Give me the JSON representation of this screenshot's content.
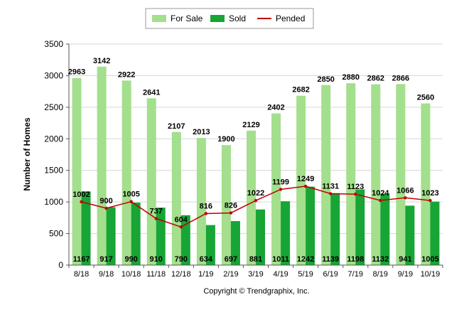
{
  "chart_data": {
    "type": "bar",
    "categories": [
      "8/18",
      "9/18",
      "10/18",
      "11/18",
      "12/18",
      "1/19",
      "2/19",
      "3/19",
      "4/19",
      "5/19",
      "6/19",
      "7/19",
      "8/19",
      "9/19",
      "10/19"
    ],
    "series": [
      {
        "name": "For Sale",
        "type": "bar",
        "color": "#a3df8c",
        "values": [
          2963,
          3142,
          2922,
          2641,
          2107,
          2013,
          1900,
          2129,
          2402,
          2682,
          2850,
          2880,
          2862,
          2866,
          2560
        ]
      },
      {
        "name": "Sold",
        "type": "bar",
        "color": "#17a535",
        "values": [
          1167,
          917,
          990,
          910,
          790,
          634,
          697,
          881,
          1011,
          1242,
          1139,
          1198,
          1132,
          941,
          1005
        ]
      },
      {
        "name": "Pended",
        "type": "line",
        "color": "#c00000",
        "values": [
          1002,
          900,
          1005,
          737,
          604,
          816,
          826,
          1022,
          1199,
          1249,
          1131,
          1123,
          1024,
          1066,
          1023
        ]
      }
    ],
    "ylabel": "Number of Homes",
    "ylim": [
      0,
      3500
    ],
    "yticks": [
      0,
      500,
      1000,
      1500,
      2000,
      2500,
      3000,
      3500
    ],
    "grid": true,
    "legend_position": "top-center",
    "footer": "Copyright © Trendgraphix, Inc."
  }
}
